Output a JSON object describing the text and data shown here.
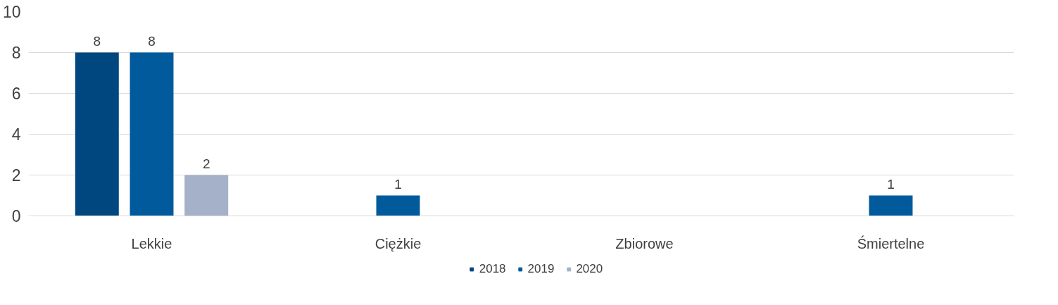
{
  "chart_data": {
    "type": "bar",
    "categories": [
      "Lekkie",
      "Ciężkie",
      "Zbiorowe",
      "Śmiertelne"
    ],
    "series": [
      {
        "name": "2018",
        "color": "#00467f",
        "values": [
          8,
          null,
          null,
          null
        ],
        "value_labels": [
          "8",
          null,
          null,
          null
        ]
      },
      {
        "name": "2019",
        "color": "#005a9c",
        "values": [
          8,
          1,
          null,
          1
        ],
        "value_labels": [
          "8",
          "1",
          null,
          "1"
        ]
      },
      {
        "name": "2020",
        "color": "#a5b0c9",
        "values": [
          2,
          null,
          null,
          null
        ],
        "value_labels": [
          "2",
          null,
          null,
          null
        ]
      }
    ],
    "ylim": [
      0,
      10
    ],
    "yticks": [
      0,
      2,
      4,
      6,
      8,
      10
    ],
    "grid": "y",
    "legend": "bottom"
  }
}
